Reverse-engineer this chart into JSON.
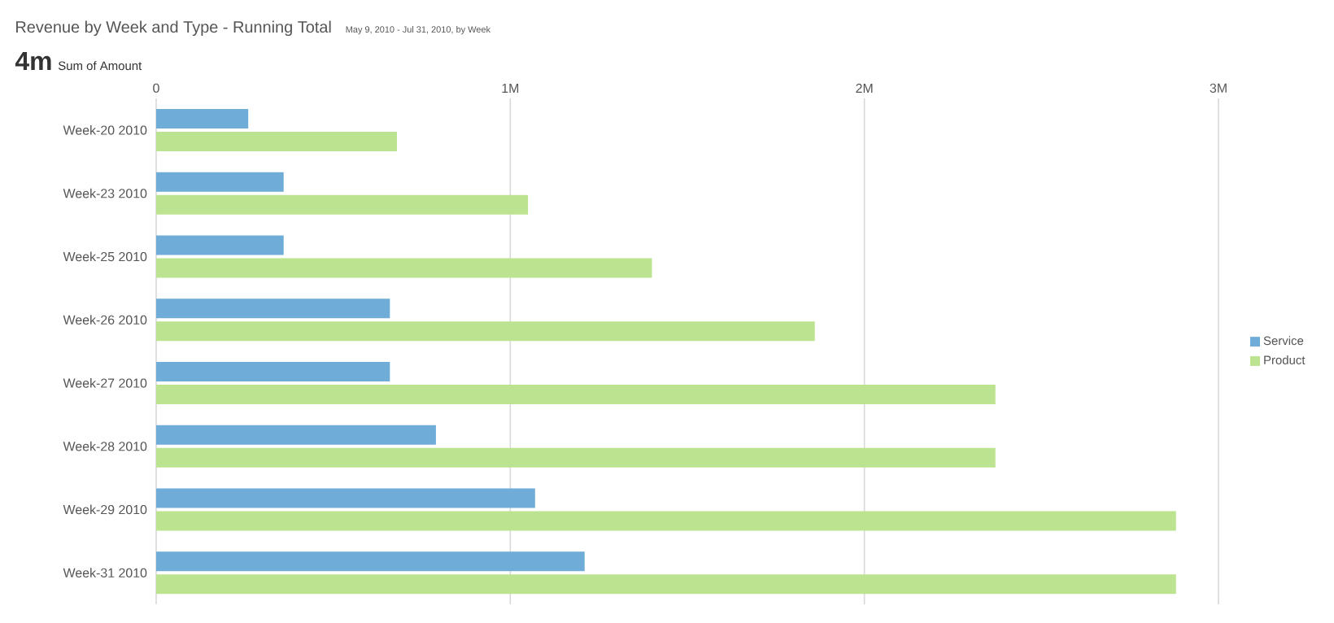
{
  "chart_data": {
    "type": "bar",
    "orientation": "horizontal",
    "title": "Revenue by Week and Type - Running Total",
    "subtitle": "May 9, 2010 - Jul 31, 2010, by Week",
    "annotations": [
      "4m",
      "Sum of Amount"
    ],
    "categories": [
      "Week-20 2010",
      "Week-23 2010",
      "Week-25 2010",
      "Week-26 2010",
      "Week-27 2010",
      "Week-28 2010",
      "Week-29 2010",
      "Week-31 2010"
    ],
    "series": [
      {
        "name": "Service",
        "color": "#6fadd8",
        "values": [
          260000,
          360000,
          360000,
          660000,
          660000,
          790000,
          1070000,
          1210000
        ]
      },
      {
        "name": "Product",
        "color": "#bce390",
        "values": [
          680000,
          1050000,
          1400000,
          1860000,
          2370000,
          2370000,
          2880000,
          2880000
        ]
      }
    ],
    "xlim": [
      0,
      3000000
    ],
    "xticks": [
      0,
      {
        "value": 1000000,
        "label": "1M"
      },
      {
        "value": 2000000,
        "label": "2M"
      },
      {
        "value": 3000000,
        "label": "3M"
      }
    ],
    "grid": "x",
    "legend": "right"
  }
}
